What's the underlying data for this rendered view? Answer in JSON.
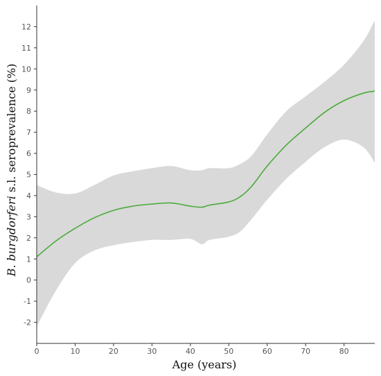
{
  "chart_data": {
    "type": "line",
    "title": "",
    "xlabel": "Age (years)",
    "ylabel_prefix": "B. burgdorferi",
    "ylabel_suffix": " s.l. seroprevalence (%)",
    "xlim": [
      0,
      88
    ],
    "ylim": [
      -3,
      13
    ],
    "x_ticks": [
      0,
      10,
      20,
      30,
      40,
      50,
      60,
      70,
      80
    ],
    "y_ticks": [
      -2,
      -1,
      0,
      1,
      2,
      3,
      4,
      5,
      6,
      7,
      8,
      9,
      10,
      11,
      12
    ],
    "grid": false,
    "colors": {
      "line": "#4aab3a",
      "band": "#d9d9d9",
      "axis": "#333333"
    },
    "series": [
      {
        "x": [
          0,
          5,
          10,
          15,
          20,
          25,
          30,
          35,
          40,
          43,
          45,
          50,
          53,
          56,
          60,
          65,
          70,
          75,
          80,
          85,
          88
        ],
        "y": [
          1.1,
          1.85,
          2.45,
          2.95,
          3.3,
          3.5,
          3.6,
          3.65,
          3.5,
          3.45,
          3.55,
          3.7,
          3.95,
          4.45,
          5.4,
          6.4,
          7.2,
          7.95,
          8.5,
          8.85,
          8.95
        ],
        "lower": [
          -2.2,
          -0.5,
          0.8,
          1.4,
          1.65,
          1.8,
          1.9,
          1.9,
          1.95,
          1.7,
          1.9,
          2.05,
          2.3,
          2.9,
          3.8,
          4.8,
          5.6,
          6.3,
          6.65,
          6.3,
          5.55
        ],
        "upper": [
          4.5,
          4.15,
          4.1,
          4.5,
          4.95,
          5.15,
          5.3,
          5.4,
          5.2,
          5.2,
          5.3,
          5.3,
          5.5,
          5.9,
          6.9,
          8.0,
          8.7,
          9.4,
          10.2,
          11.3,
          12.3
        ]
      }
    ]
  }
}
